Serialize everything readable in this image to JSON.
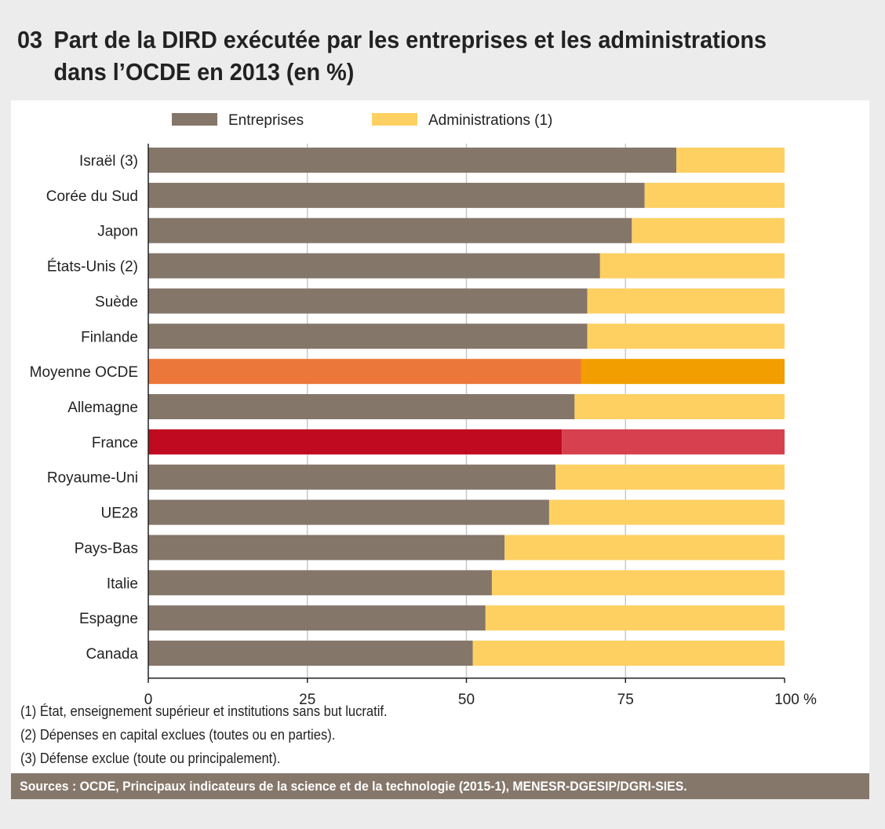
{
  "title": {
    "number": "03",
    "line1": "Part de la DIRD exécutée par les entreprises et les administrations",
    "line2": "dans l’OCDE en 2013 (en %)"
  },
  "chart_data": {
    "type": "bar",
    "orientation": "horizontal",
    "stacked": true,
    "categories": [
      "Israël (3)",
      "Corée du Sud",
      "Japon",
      "États-Unis (2)",
      "Suède",
      "Finlande",
      "Moyenne OCDE",
      "Allemagne",
      "France",
      "Royaume-Uni",
      "UE28",
      "Pays-Bas",
      "Italie",
      "Espagne",
      "Canada"
    ],
    "series": [
      {
        "name": "Entreprises",
        "color": "#85766a",
        "values": [
          83,
          78,
          76,
          71,
          69,
          69,
          68,
          67,
          65,
          64,
          63,
          56,
          54,
          53,
          51
        ]
      },
      {
        "name": "Administrations (1)",
        "color": "#fed062",
        "values": [
          17,
          22,
          24,
          29,
          31,
          31,
          32,
          33,
          35,
          36,
          37,
          44,
          46,
          47,
          49
        ]
      }
    ],
    "highlight": {
      "Moyenne OCDE": [
        "#ec773a",
        "#f29e00"
      ],
      "France": [
        "#c00a20",
        "#d6404f"
      ]
    },
    "xlim": [
      0,
      100
    ],
    "xticks": [
      "0",
      "25",
      "50",
      "75",
      "100 %"
    ],
    "grid": true,
    "legend": "top"
  },
  "notes": [
    "(1) État, enseignement supérieur et institutions sans but lucratif.",
    "(2) Dépenses en capital exclues (toutes ou en parties).",
    "(3) Défense exclue (toute ou principalement)."
  ],
  "sources": "Sources : OCDE, Principaux indicateurs de la science et de la technologie (2015-1), MENESR-DGESIP/DGRI-SIES."
}
